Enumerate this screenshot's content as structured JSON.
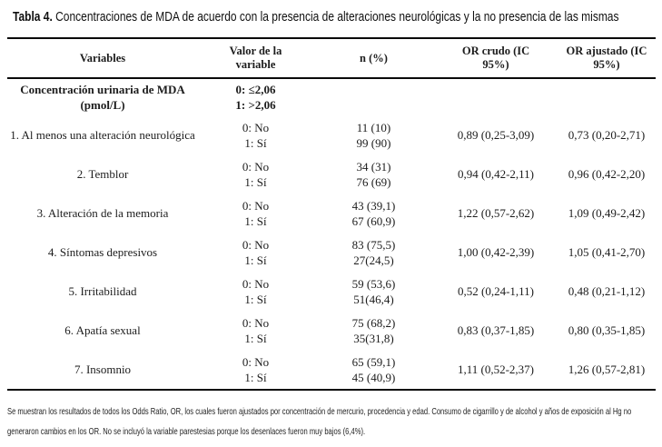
{
  "title": {
    "label": "Tabla 4.",
    "text": " Concentraciones de MDA de acuerdo con la presencia de alteraciones neurológicas y la no presencia de las mismas"
  },
  "table": {
    "headers": {
      "variables": "Variables",
      "valor": "Valor de la variable",
      "n": "n (%)",
      "or_crudo": "OR crudo (IC 95%)",
      "or_ajustado": "OR ajustado (IC 95%)"
    },
    "group_row": {
      "variable": "Concentración urinaria de MDA (pmol/L)",
      "values": [
        "0: ≤2,06",
        "1: >2,06"
      ]
    },
    "rows": [
      {
        "variable": "1. Al menos una alteración neurológica",
        "values": [
          "0: No",
          "1: Sí"
        ],
        "n": [
          "11 (10)",
          "99 (90)"
        ],
        "or_crudo": "0,89 (0,25-3,09)",
        "or_ajustado": "0,73 (0,20-2,71)"
      },
      {
        "variable": "2. Temblor",
        "values": [
          "0: No",
          "1: Sí"
        ],
        "n": [
          "34 (31)",
          "76 (69)"
        ],
        "or_crudo": "0,94 (0,42-2,11)",
        "or_ajustado": "0,96 (0,42-2,20)"
      },
      {
        "variable": "3. Alteración de la memoria",
        "values": [
          "0: No",
          "1: Sí"
        ],
        "n": [
          "43 (39,1)",
          "67 (60,9)"
        ],
        "or_crudo": "1,22 (0,57-2,62)",
        "or_ajustado": "1,09 (0,49-2,42)"
      },
      {
        "variable": "4. Síntomas depresivos",
        "values": [
          "0: No",
          "1: Sí"
        ],
        "n": [
          "83 (75,5)",
          "27(24,5)"
        ],
        "or_crudo": "1,00 (0,42-2,39)",
        "or_ajustado": "1,05 (0,41-2,70)"
      },
      {
        "variable": "5. Irritabilidad",
        "values": [
          "0: No",
          "1: Sí"
        ],
        "n": [
          "59 (53,6)",
          "51(46,4)"
        ],
        "or_crudo": "0,52 (0,24-1,11)",
        "or_ajustado": "0,48 (0,21-1,12)"
      },
      {
        "variable": "6. Apatía sexual",
        "values": [
          "0: No",
          "1: Sí"
        ],
        "n": [
          "75 (68,2)",
          "35(31,8)"
        ],
        "or_crudo": "0,83 (0,37-1,85)",
        "or_ajustado": "0,80 (0,35-1,85)"
      },
      {
        "variable": "7. Insomnio",
        "values": [
          "0: No",
          "1: Sí"
        ],
        "n": [
          "65 (59,1)",
          "45 (40,9)"
        ],
        "or_crudo": "1,11 (0,52-2,37)",
        "or_ajustado": "1,26 (0,57-2,81)"
      }
    ]
  },
  "footnote": "Se muestran los resultados de todos los Odds Ratio, OR, los cuales fueron ajustados por concentración de mercurio, procedencia y edad. Consumo de cigarrillo y de alcohol y años de exposición al Hg no generaron cambios en los OR. No se incluyó la variable parestesias porque los desenlaces fueron muy bajos (6,4%)."
}
